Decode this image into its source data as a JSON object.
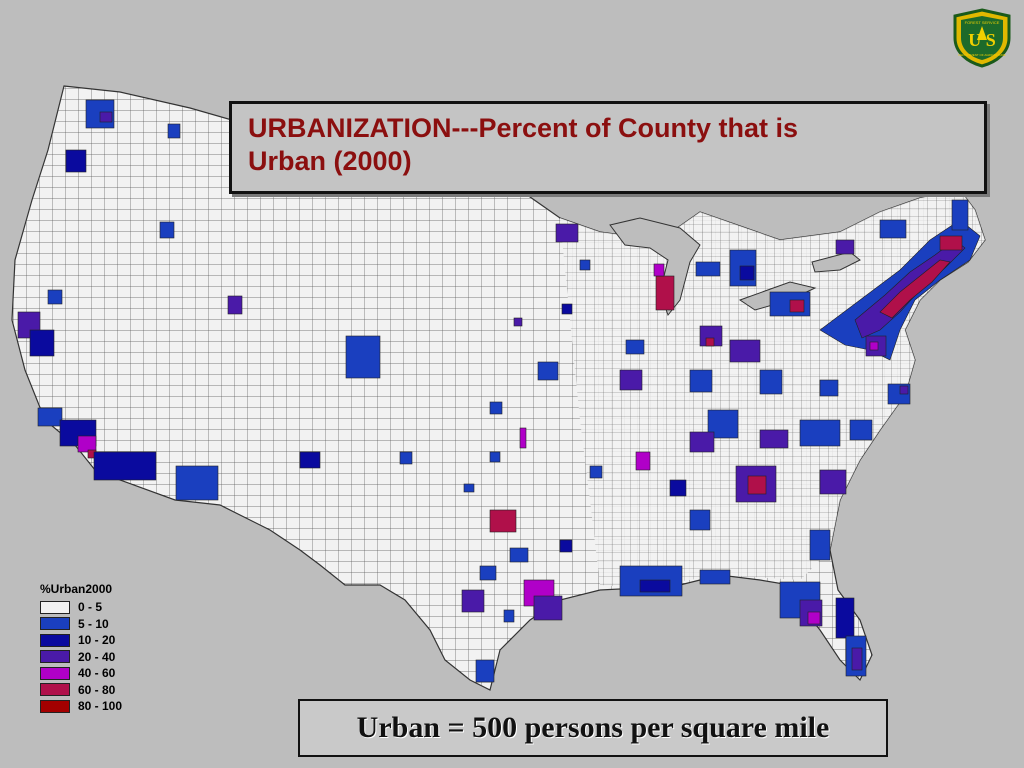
{
  "title": {
    "line1": "URBANIZATION---Percent of County that is",
    "line2": "Urban (2000)"
  },
  "legend": {
    "title": "%Urban2000",
    "items": [
      {
        "label": "0 - 5",
        "color": "#f2f2f2"
      },
      {
        "label": "5 - 10",
        "color": "#1a3fbf"
      },
      {
        "label": "10 - 20",
        "color": "#0a0a9e"
      },
      {
        "label": "20 - 40",
        "color": "#4a1aa8"
      },
      {
        "label": "40 - 60",
        "color": "#b000c8"
      },
      {
        "label": "60 - 80",
        "color": "#b0104a"
      },
      {
        "label": "80 - 100",
        "color": "#a30000"
      }
    ]
  },
  "note": "Urban = 500 persons per square mile",
  "logo": {
    "text": "U S",
    "caption_top": "FOREST SERVICE",
    "caption_bottom": "DEPARTMENT OF AGRICULTURE"
  },
  "map": {
    "region": "contiguous United States",
    "unit": "county"
  }
}
